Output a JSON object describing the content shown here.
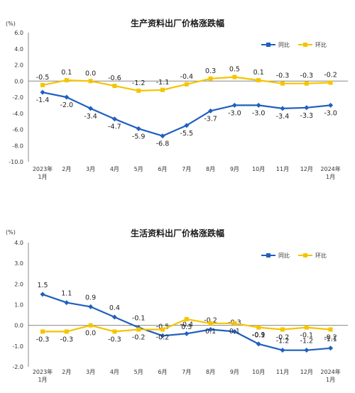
{
  "colors": {
    "yoy": "#1f5fbf",
    "mom": "#f5c400",
    "axis": "#888888"
  },
  "chart_data": [
    {
      "type": "line",
      "title": "生产资料出厂价格涨跌幅",
      "unit": "(%)",
      "categories": [
        [
          "2023年",
          "1月"
        ],
        [
          "2月"
        ],
        [
          "3月"
        ],
        [
          "4月"
        ],
        [
          "5月"
        ],
        [
          "6月"
        ],
        [
          "7月"
        ],
        [
          "8月"
        ],
        [
          "9月"
        ],
        [
          "10月"
        ],
        [
          "11月"
        ],
        [
          "12月"
        ],
        [
          "2024年",
          "1月"
        ]
      ],
      "y_ticks": [
        "6.0",
        "4.0",
        "2.0",
        "0.0",
        "-2.0",
        "-4.0",
        "-6.0",
        "-8.0",
        "-10.0"
      ],
      "ylim": [
        -10,
        6
      ],
      "legend_position": "top-right",
      "series": [
        {
          "name": "同比",
          "key": "yoy",
          "values": [
            -1.4,
            -2.0,
            -3.4,
            -4.7,
            -5.9,
            -6.8,
            -5.5,
            -3.7,
            -3.0,
            -3.0,
            -3.4,
            -3.3,
            -3.0
          ],
          "labels": [
            "-1.4",
            "-2.0",
            "-3.4",
            "-4.7",
            "-5.9",
            "-6.8",
            "-5.5",
            "-3.7",
            "-3.0",
            "-3.0",
            "-3.4",
            "-3.3",
            "-3.0"
          ]
        },
        {
          "name": "环比",
          "key": "mom",
          "values": [
            -0.5,
            0.1,
            0.0,
            -0.6,
            -1.2,
            -1.1,
            -0.4,
            0.3,
            0.5,
            0.1,
            -0.3,
            -0.3,
            -0.2
          ],
          "labels": [
            "-0.5",
            "0.1",
            "0.0",
            "-0.6",
            "-1.2",
            "-1.1",
            "-0.4",
            "0.3",
            "0.5",
            "0.1",
            "-0.3",
            "-0.3",
            "-0.2"
          ]
        }
      ]
    },
    {
      "type": "line",
      "title": "生活资料出厂价格涨跌幅",
      "unit": "(%)",
      "categories": [
        [
          "2023年",
          "1月"
        ],
        [
          "2月"
        ],
        [
          "3月"
        ],
        [
          "4月"
        ],
        [
          "5月"
        ],
        [
          "6月"
        ],
        [
          "7月"
        ],
        [
          "8月"
        ],
        [
          "9月"
        ],
        [
          "10月"
        ],
        [
          "11月"
        ],
        [
          "12月"
        ],
        [
          "2024年",
          "1月"
        ]
      ],
      "y_ticks": [
        "4.0",
        "3.0",
        "2.0",
        "1.0",
        "0.0",
        "-1.0",
        "-2.0"
      ],
      "ylim": [
        -2,
        4
      ],
      "legend_position": "top-right",
      "series": [
        {
          "name": "同比",
          "key": "yoy",
          "values": [
            1.5,
            1.1,
            0.9,
            0.4,
            -0.1,
            -0.5,
            -0.4,
            -0.2,
            -0.3,
            -0.9,
            -1.2,
            -1.2,
            -1.1
          ],
          "labels": [
            "1.5",
            "1.1",
            "0.9",
            "0.4",
            "-0.1",
            "-0.5",
            "-0.4",
            "-0.2",
            "-0.3",
            "-0.9",
            "-1.2",
            "-1.2",
            "-1.1"
          ]
        },
        {
          "name": "环比",
          "key": "mom",
          "values": [
            -0.3,
            -0.3,
            0.0,
            -0.3,
            -0.2,
            -0.2,
            0.3,
            0.1,
            0.1,
            -0.1,
            -0.2,
            -0.1,
            -0.2
          ],
          "labels": [
            "-0.3",
            "-0.3",
            "0.0",
            "-0.3",
            "-0.2",
            "-0.2",
            "0.3",
            "0.1",
            "0.1",
            "-0.1",
            "-0.2",
            "-0.1",
            "-0.2"
          ]
        }
      ]
    }
  ]
}
